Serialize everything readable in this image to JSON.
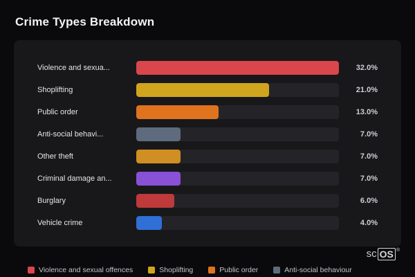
{
  "page": {
    "title": "Crime Types Breakdown"
  },
  "chart_data": {
    "type": "bar",
    "orientation": "horizontal",
    "title": "Crime Types Breakdown",
    "categories": [
      "Violence and sexua...",
      "Shoplifting",
      "Public order",
      "Anti-social behavi...",
      "Other theft",
      "Criminal damage an...",
      "Burglary",
      "Vehicle crime"
    ],
    "values": [
      32.0,
      21.0,
      13.0,
      7.0,
      7.0,
      7.0,
      6.0,
      4.0
    ],
    "value_labels": [
      "32.0%",
      "21.0%",
      "13.0%",
      "7.0%",
      "7.0%",
      "7.0%",
      "6.0%",
      "4.0%"
    ],
    "bar_colors": [
      "#d9464c",
      "#d0a51d",
      "#df731e",
      "#5d6b7d",
      "#cf8f22",
      "#8951d6",
      "#bf3a3a",
      "#2f6fd6"
    ],
    "xlim": [
      0,
      32
    ],
    "track_color": "#242428",
    "grid": false,
    "legend_position": "bottom"
  },
  "legend": {
    "items": [
      {
        "label": "Violence and sexual offences",
        "color": "#d9464c"
      },
      {
        "label": "Shoplifting",
        "color": "#d0a51d"
      },
      {
        "label": "Public order",
        "color": "#df731e"
      },
      {
        "label": "Anti-social behaviour",
        "color": "#5d6b7d"
      }
    ]
  },
  "branding": {
    "prefix": "sc",
    "boxed": "OS",
    "reg": "®"
  }
}
